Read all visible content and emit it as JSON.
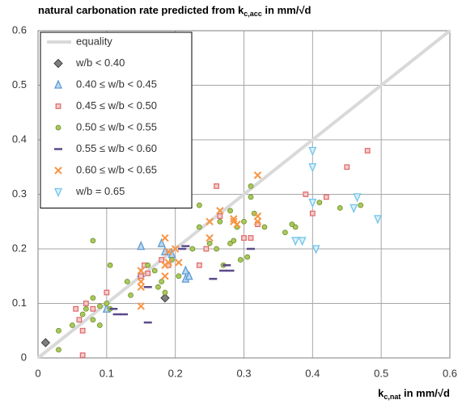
{
  "chart_data": {
    "type": "scatter",
    "title": [
      "natural carbonation rate predicted from k",
      "c,acc",
      " in mm/√d"
    ],
    "xlabel": [
      "k",
      "c,nat",
      " in mm/√d"
    ],
    "xlim": [
      0,
      0.6
    ],
    "ylim": [
      0,
      0.6
    ],
    "xticks": [
      0,
      0.1,
      0.2,
      0.3,
      0.4,
      0.5,
      0.6
    ],
    "yticks": [
      0,
      0.1,
      0.2,
      0.3,
      0.4,
      0.5,
      0.6
    ],
    "grid": true,
    "legend": "top-left",
    "series": [
      {
        "name": "equality",
        "marker": "line",
        "color": "#d9d9d9",
        "x": [
          0,
          0.6
        ],
        "values": [
          0,
          0.6
        ]
      },
      {
        "name": "w/b < 0.40",
        "marker": "diamond",
        "color": "#7f7f7f",
        "x": [
          0.011,
          0.185
        ],
        "values": [
          0.028,
          0.11
        ]
      },
      {
        "name": "0.40 ≤ w/b < 0.45",
        "marker": "triangle",
        "color": "#5b9bd5",
        "x": [
          0.1,
          0.15,
          0.15,
          0.18,
          0.185,
          0.215,
          0.215,
          0.22,
          0.195
        ],
        "values": [
          0.09,
          0.205,
          0.155,
          0.21,
          0.195,
          0.16,
          0.145,
          0.15,
          0.19
        ]
      },
      {
        "name": "0.45 ≤ w/b < 0.50",
        "marker": "square",
        "color": "#e06666",
        "x": [
          0.055,
          0.06,
          0.065,
          0.065,
          0.07,
          0.08,
          0.1,
          0.15,
          0.155,
          0.16,
          0.18,
          0.19,
          0.235,
          0.245,
          0.26,
          0.265,
          0.3,
          0.31,
          0.32,
          0.39,
          0.4,
          0.42,
          0.45,
          0.48
        ],
        "values": [
          0.09,
          0.07,
          0.005,
          0.05,
          0.1,
          0.09,
          0.12,
          0.15,
          0.17,
          0.155,
          0.18,
          0.17,
          0.17,
          0.2,
          0.315,
          0.26,
          0.22,
          0.22,
          0.245,
          0.3,
          0.265,
          0.295,
          0.35,
          0.38
        ]
      },
      {
        "name": "0.50 ≤ w/b < 0.55",
        "marker": "circle",
        "color": "#8db33a",
        "x": [
          0.03,
          0.03,
          0.05,
          0.065,
          0.07,
          0.08,
          0.08,
          0.09,
          0.09,
          0.1,
          0.105,
          0.105,
          0.08,
          0.13,
          0.135,
          0.16,
          0.17,
          0.175,
          0.18,
          0.185,
          0.195,
          0.205,
          0.225,
          0.235,
          0.235,
          0.25,
          0.26,
          0.265,
          0.27,
          0.28,
          0.285,
          0.29,
          0.295,
          0.305,
          0.31,
          0.315,
          0.3,
          0.31,
          0.33,
          0.36,
          0.37,
          0.375,
          0.41,
          0.44,
          0.47,
          0.28
        ],
        "values": [
          0.05,
          0.015,
          0.06,
          0.08,
          0.09,
          0.07,
          0.11,
          0.06,
          0.095,
          0.1,
          0.17,
          0.09,
          0.215,
          0.14,
          0.115,
          0.17,
          0.16,
          0.13,
          0.14,
          0.12,
          0.18,
          0.15,
          0.2,
          0.28,
          0.24,
          0.21,
          0.2,
          0.25,
          0.17,
          0.21,
          0.215,
          0.24,
          0.18,
          0.185,
          0.295,
          0.265,
          0.25,
          0.315,
          0.24,
          0.23,
          0.245,
          0.24,
          0.285,
          0.275,
          0.28,
          0.27
        ]
      },
      {
        "name": "0.55 ≤ w/b < 0.60",
        "marker": "dash",
        "color": "#5b4a8a",
        "x": [
          0.11,
          0.115,
          0.125,
          0.16,
          0.16,
          0.21,
          0.215,
          0.255,
          0.27,
          0.275,
          0.28,
          0.31
        ],
        "values": [
          0.09,
          0.08,
          0.08,
          0.13,
          0.065,
          0.2,
          0.205,
          0.145,
          0.16,
          0.17,
          0.16,
          0.2
        ]
      },
      {
        "name": "0.60 ≤ w/b < 0.65",
        "marker": "cross",
        "color": "#f79646",
        "x": [
          0.15,
          0.15,
          0.15,
          0.15,
          0.185,
          0.185,
          0.185,
          0.19,
          0.19,
          0.2,
          0.205,
          0.25,
          0.25,
          0.265,
          0.285,
          0.285,
          0.29,
          0.32,
          0.32,
          0.32
        ],
        "values": [
          0.095,
          0.13,
          0.14,
          0.16,
          0.22,
          0.17,
          0.15,
          0.175,
          0.195,
          0.2,
          0.175,
          0.25,
          0.22,
          0.27,
          0.25,
          0.255,
          0.245,
          0.335,
          0.26,
          0.25
        ]
      },
      {
        "name": "w/b = 0.65",
        "marker": "triangle-down",
        "color": "#6fc5e8",
        "x": [
          0.375,
          0.385,
          0.4,
          0.4,
          0.4,
          0.405,
          0.46,
          0.465,
          0.495
        ],
        "values": [
          0.215,
          0.215,
          0.38,
          0.35,
          0.285,
          0.2,
          0.275,
          0.295,
          0.255
        ]
      }
    ]
  }
}
